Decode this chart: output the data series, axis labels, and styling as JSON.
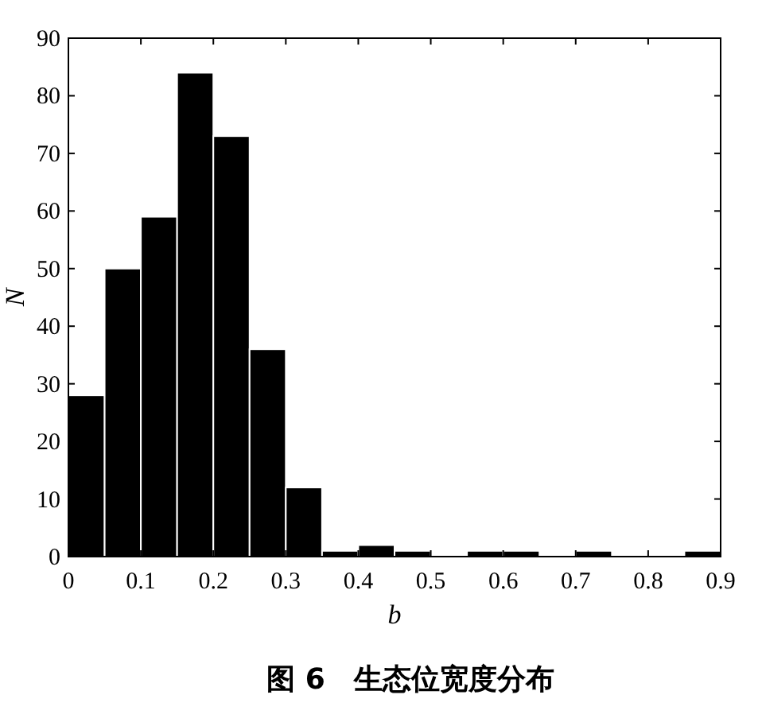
{
  "chart_data": {
    "type": "histogram",
    "title": "图 6　生态位宽度分布",
    "xlabel": "b",
    "ylabel": "N",
    "bins": [
      0,
      0.05,
      0.1,
      0.15,
      0.2,
      0.25,
      0.3,
      0.35,
      0.4,
      0.45,
      0.5,
      0.55,
      0.6,
      0.65,
      0.7,
      0.75,
      0.8,
      0.85,
      0.9
    ],
    "values": [
      28,
      50,
      59,
      84,
      73,
      36,
      12,
      1,
      2,
      1,
      0,
      1,
      1,
      0,
      1,
      0,
      0,
      1
    ],
    "color": "#000000",
    "xlim": [
      0,
      0.9
    ],
    "ylim": [
      0,
      90
    ],
    "xticks": [
      0,
      0.1,
      0.2,
      0.3,
      0.4,
      0.5,
      0.6,
      0.7,
      0.8,
      0.9
    ],
    "yticks": [
      0,
      10,
      20,
      30,
      40,
      50,
      60,
      70,
      80,
      90
    ]
  }
}
